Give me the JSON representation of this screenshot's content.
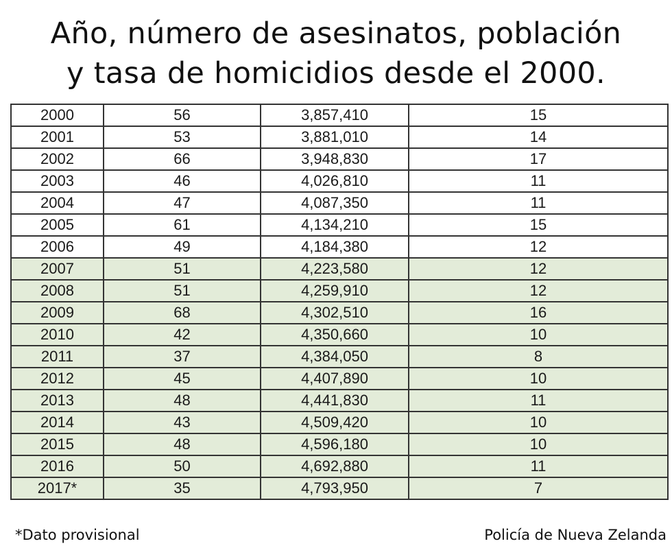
{
  "title": {
    "line1": "Año, número de asesinatos, población",
    "line2": "y tasa de homicidios desde el 2000."
  },
  "table": {
    "rows": [
      {
        "year": "2000",
        "murders": "56",
        "population": "3,857,410",
        "rate": "15",
        "shaded": false
      },
      {
        "year": "2001",
        "murders": "53",
        "population": "3,881,010",
        "rate": "14",
        "shaded": false
      },
      {
        "year": "2002",
        "murders": "66",
        "population": "3,948,830",
        "rate": "17",
        "shaded": false
      },
      {
        "year": "2003",
        "murders": "46",
        "population": "4,026,810",
        "rate": "11",
        "shaded": false
      },
      {
        "year": "2004",
        "murders": "47",
        "population": "4,087,350",
        "rate": "11",
        "shaded": false
      },
      {
        "year": "2005",
        "murders": "61",
        "population": "4,134,210",
        "rate": "15",
        "shaded": false
      },
      {
        "year": "2006",
        "murders": "49",
        "population": "4,184,380",
        "rate": "12",
        "shaded": false
      },
      {
        "year": "2007",
        "murders": "51",
        "population": "4,223,580",
        "rate": "12",
        "shaded": true
      },
      {
        "year": "2008",
        "murders": "51",
        "population": "4,259,910",
        "rate": "12",
        "shaded": true
      },
      {
        "year": "2009",
        "murders": "68",
        "population": "4,302,510",
        "rate": "16",
        "shaded": true
      },
      {
        "year": "2010",
        "murders": "42",
        "population": "4,350,660",
        "rate": "10",
        "shaded": true
      },
      {
        "year": "2011",
        "murders": "37",
        "population": "4,384,050",
        "rate": "8",
        "shaded": true
      },
      {
        "year": "2012",
        "murders": "45",
        "population": "4,407,890",
        "rate": "10",
        "shaded": true
      },
      {
        "year": "2013",
        "murders": "48",
        "population": "4,441,830",
        "rate": "11",
        "shaded": true
      },
      {
        "year": "2014",
        "murders": "43",
        "population": "4,509,420",
        "rate": "10",
        "shaded": true
      },
      {
        "year": "2015",
        "murders": "48",
        "population": "4,596,180",
        "rate": "10",
        "shaded": true
      },
      {
        "year": "2016",
        "murders": "50",
        "population": "4,692,880",
        "rate": "11",
        "shaded": true
      },
      {
        "year": "2017*",
        "murders": "35",
        "population": "4,793,950",
        "rate": "7",
        "shaded": true
      }
    ]
  },
  "footer": {
    "note": "*Dato provisional",
    "source": "Policía de Nueva Zelanda"
  },
  "colors": {
    "shaded_row": "#e3ecd9",
    "plain_row": "#ffffff",
    "border": "#333333"
  }
}
